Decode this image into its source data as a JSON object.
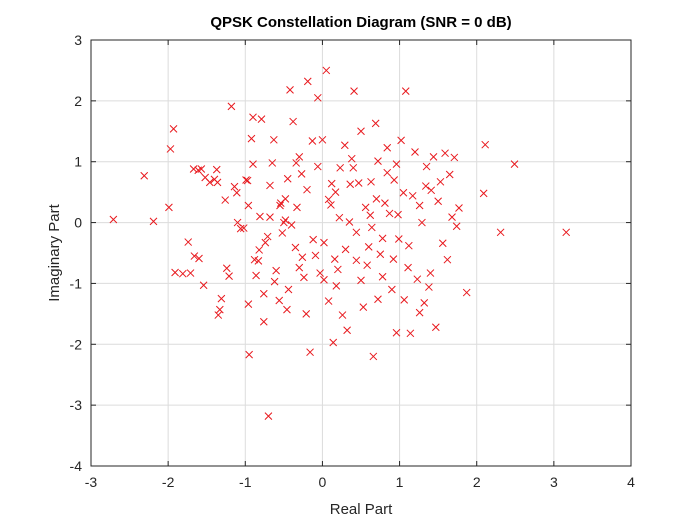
{
  "chart_data": {
    "type": "scatter",
    "title": "QPSK Constellation Diagram (SNR = 0 dB)",
    "xlabel": "Real Part",
    "ylabel": "Imaginary Part",
    "xlim": [
      -3,
      4
    ],
    "ylim": [
      -4,
      3
    ],
    "xticks": [
      "-3",
      "-2",
      "-1",
      "0",
      "1",
      "2",
      "3",
      "4"
    ],
    "yticks": [
      "-4",
      "-3",
      "-2",
      "-1",
      "0",
      "1",
      "2",
      "3"
    ],
    "grid": true,
    "marker": "x",
    "marker_color": "#e8181d",
    "series": [
      {
        "points": [
          [
            -2.71,
            0.05
          ],
          [
            -2.31,
            0.77
          ],
          [
            -2.19,
            0.02
          ],
          [
            -1.99,
            0.25
          ],
          [
            -1.97,
            1.21
          ],
          [
            -1.93,
            1.54
          ],
          [
            -1.91,
            -0.82
          ],
          [
            -1.81,
            -0.84
          ],
          [
            -1.74,
            -0.32
          ],
          [
            -1.71,
            -0.83
          ],
          [
            -1.66,
            -0.55
          ],
          [
            -1.6,
            -0.59
          ],
          [
            -1.54,
            -1.03
          ],
          [
            -1.67,
            0.88
          ],
          [
            -1.61,
            0.86
          ],
          [
            -1.57,
            0.88
          ],
          [
            -1.52,
            0.74
          ],
          [
            -1.46,
            0.66
          ],
          [
            -1.4,
            0.71
          ],
          [
            -1.36,
            0.66
          ],
          [
            -1.37,
            0.87
          ],
          [
            -1.33,
            -1.43
          ],
          [
            -1.35,
            -1.52
          ],
          [
            -1.31,
            -1.25
          ],
          [
            -1.24,
            -0.75
          ],
          [
            -1.21,
            -0.88
          ],
          [
            -1.26,
            0.37
          ],
          [
            -1.18,
            1.91
          ],
          [
            -1.14,
            0.59
          ],
          [
            -1.11,
            0.49
          ],
          [
            -1.06,
            -0.1
          ],
          [
            -1.02,
            -0.09
          ],
          [
            -0.99,
            0.7
          ],
          [
            -0.97,
            0.69
          ],
          [
            -0.95,
            -2.17
          ],
          [
            -0.96,
            -1.34
          ],
          [
            -0.92,
            1.38
          ],
          [
            -0.9,
            1.73
          ],
          [
            -0.88,
            -0.61
          ],
          [
            -0.86,
            -0.87
          ],
          [
            -0.83,
            -0.63
          ],
          [
            -0.81,
            0.1
          ],
          [
            -0.79,
            1.7
          ],
          [
            -0.76,
            -1.63
          ],
          [
            -0.74,
            -0.33
          ],
          [
            -0.71,
            -0.23
          ],
          [
            -0.68,
            0.61
          ],
          [
            -0.65,
            0.98
          ],
          [
            -0.7,
            -3.18
          ],
          [
            -0.63,
            1.36
          ],
          [
            -0.6,
            -0.79
          ],
          [
            -0.56,
            -1.28
          ],
          [
            -0.55,
            0.28
          ],
          [
            -0.52,
            -0.17
          ],
          [
            -0.5,
            0.0
          ],
          [
            -0.48,
            0.04
          ],
          [
            -0.46,
            -1.43
          ],
          [
            -0.45,
            0.72
          ],
          [
            -0.42,
            2.18
          ],
          [
            -0.38,
            1.66
          ],
          [
            -0.35,
            -0.41
          ],
          [
            -0.33,
            0.25
          ],
          [
            -0.3,
            -0.74
          ],
          [
            -0.27,
            0.8
          ],
          [
            -0.24,
            -0.9
          ],
          [
            -0.21,
            -1.5
          ],
          [
            -0.19,
            2.32
          ],
          [
            -0.16,
            -2.13
          ],
          [
            -0.13,
            1.34
          ],
          [
            -0.09,
            -0.54
          ],
          [
            -0.06,
            2.05
          ],
          [
            -0.03,
            -0.83
          ],
          [
            0.0,
            1.36
          ],
          [
            0.02,
            -0.94
          ],
          [
            0.05,
            2.5
          ],
          [
            0.08,
            -1.29
          ],
          [
            0.11,
            0.29
          ],
          [
            0.14,
            -1.97
          ],
          [
            0.17,
            0.5
          ],
          [
            0.2,
            -0.77
          ],
          [
            0.23,
            0.9
          ],
          [
            0.26,
            -1.52
          ],
          [
            0.29,
            1.27
          ],
          [
            0.32,
            -1.77
          ],
          [
            0.35,
            0.01
          ],
          [
            0.38,
            1.05
          ],
          [
            0.41,
            2.16
          ],
          [
            0.44,
            -0.62
          ],
          [
            0.47,
            0.65
          ],
          [
            0.5,
            1.5
          ],
          [
            0.53,
            -1.39
          ],
          [
            0.56,
            0.25
          ],
          [
            0.6,
            -0.4
          ],
          [
            0.63,
            0.67
          ],
          [
            0.66,
            -2.2
          ],
          [
            0.69,
            1.63
          ],
          [
            0.72,
            1.01
          ],
          [
            0.75,
            -0.52
          ],
          [
            0.78,
            -0.89
          ],
          [
            0.81,
            0.32
          ],
          [
            0.84,
            1.23
          ],
          [
            0.87,
            0.15
          ],
          [
            0.9,
            -1.1
          ],
          [
            0.93,
            0.7
          ],
          [
            0.96,
            -1.81
          ],
          [
            0.99,
            -0.27
          ],
          [
            1.02,
            1.35
          ],
          [
            1.05,
            0.49
          ],
          [
            1.08,
            2.16
          ],
          [
            1.11,
            -0.74
          ],
          [
            1.14,
            -1.82
          ],
          [
            1.17,
            0.44
          ],
          [
            1.2,
            1.16
          ],
          [
            1.23,
            -0.93
          ],
          [
            1.26,
            -1.48
          ],
          [
            1.29,
            0.0
          ],
          [
            1.32,
            -1.32
          ],
          [
            1.35,
            0.92
          ],
          [
            1.38,
            -1.06
          ],
          [
            1.41,
            0.53
          ],
          [
            1.44,
            1.08
          ],
          [
            1.47,
            -1.72
          ],
          [
            1.5,
            0.35
          ],
          [
            1.53,
            0.67
          ],
          [
            1.56,
            -0.34
          ],
          [
            1.59,
            1.14
          ],
          [
            1.62,
            -0.61
          ],
          [
            1.65,
            0.79
          ],
          [
            1.68,
            0.09
          ],
          [
            1.71,
            1.07
          ],
          [
            1.74,
            -0.06
          ],
          [
            1.77,
            0.24
          ],
          [
            1.87,
            -1.15
          ],
          [
            2.09,
            0.48
          ],
          [
            2.11,
            1.28
          ],
          [
            2.31,
            -0.16
          ],
          [
            2.49,
            0.96
          ],
          [
            3.16,
            -0.16
          ],
          [
            0.58,
            -0.7
          ],
          [
            0.44,
            -0.16
          ],
          [
            0.3,
            -0.44
          ],
          [
            0.16,
            -0.6
          ],
          [
            0.02,
            -0.33
          ],
          [
            -0.12,
            -0.28
          ],
          [
            -0.26,
            -0.57
          ],
          [
            -0.4,
            -0.04
          ],
          [
            -0.54,
            0.32
          ],
          [
            -0.68,
            0.09
          ],
          [
            -0.82,
            -0.45
          ],
          [
            -0.96,
            0.28
          ],
          [
            -1.1,
            0.0
          ],
          [
            0.7,
            0.39
          ],
          [
            0.84,
            0.82
          ],
          [
            0.98,
            0.13
          ],
          [
            1.12,
            -0.38
          ],
          [
            1.26,
            0.28
          ],
          [
            1.4,
            -0.83
          ],
          [
            0.36,
            0.63
          ],
          [
            0.22,
            0.08
          ],
          [
            0.08,
            0.38
          ],
          [
            -0.06,
            0.92
          ],
          [
            -0.2,
            0.54
          ],
          [
            -0.34,
            0.98
          ],
          [
            -0.48,
            0.39
          ],
          [
            -0.62,
            -0.97
          ],
          [
            -0.76,
            -1.17
          ],
          [
            0.5,
            -0.95
          ],
          [
            0.64,
            -0.08
          ],
          [
            0.78,
            -0.26
          ],
          [
            0.92,
            -0.6
          ],
          [
            1.06,
            -1.27
          ],
          [
            -0.3,
            1.08
          ],
          [
            0.4,
            0.9
          ],
          [
            0.62,
            0.12
          ],
          [
            -0.44,
            -1.1
          ],
          [
            0.18,
            -1.04
          ],
          [
            0.96,
            0.96
          ],
          [
            1.34,
            0.6
          ],
          [
            -0.9,
            0.96
          ],
          [
            0.12,
            0.64
          ],
          [
            0.72,
            -1.26
          ]
        ]
      }
    ]
  }
}
